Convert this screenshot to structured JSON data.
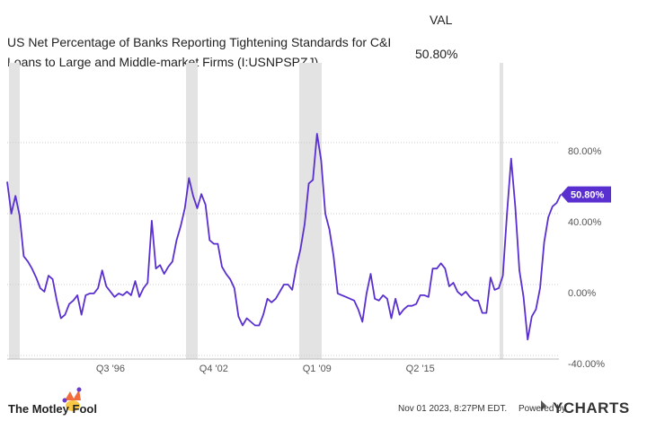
{
  "header": {
    "title": "US Net Percentage of Banks Reporting Tightening Standards for C&I Loans to Large and Middle-market Firms (I:USNPSPZJ)",
    "value_heading": "VAL",
    "current_value": "50.80%"
  },
  "footer": {
    "brand": "The Motley Fool",
    "timestamp": "Nov 01 2023, 8:27PM EDT.",
    "powered_by": "Powered by",
    "provider": "YCHARTS"
  },
  "chart_data": {
    "type": "line",
    "categories": [
      null,
      null,
      null,
      null,
      null,
      null,
      null,
      null,
      null,
      null,
      null,
      null,
      null,
      null,
      null,
      null,
      null,
      null,
      null,
      null,
      null,
      null,
      null,
      null,
      null,
      "Q3 '96",
      null,
      null,
      null,
      null,
      null,
      null,
      null,
      null,
      null,
      null,
      null,
      null,
      null,
      null,
      null,
      null,
      null,
      null,
      null,
      null,
      null,
      null,
      null,
      null,
      "Q4 '02",
      null,
      null,
      null,
      null,
      null,
      null,
      null,
      null,
      null,
      null,
      null,
      null,
      null,
      null,
      null,
      null,
      null,
      null,
      null,
      null,
      null,
      null,
      null,
      null,
      "Q1 '09",
      null,
      null,
      null,
      null,
      null,
      null,
      null,
      null,
      null,
      null,
      null,
      null,
      null,
      null,
      null,
      null,
      null,
      null,
      null,
      null,
      null,
      null,
      null,
      null,
      "Q2 '15",
      null,
      null,
      null,
      null,
      null,
      null,
      null,
      null,
      null,
      null,
      null,
      null,
      null,
      null,
      null,
      null,
      null,
      null,
      null,
      null,
      null,
      null,
      null,
      null,
      null,
      null,
      null,
      null,
      null,
      null,
      null,
      null,
      null,
      null
    ],
    "series": [
      {
        "name": "VAL",
        "color": "#5a2fd0",
        "values": [
          58,
          40,
          50,
          39,
          16,
          13,
          9,
          4,
          -2,
          -4,
          5,
          3,
          -9,
          -19,
          -17,
          -11,
          -9,
          -6,
          -17,
          -6,
          -5,
          -5,
          -2,
          8,
          -1,
          -4,
          -7,
          -5,
          -6,
          -4,
          -6,
          2,
          -7,
          -2,
          1,
          36,
          9,
          11,
          6,
          10,
          13,
          25,
          33,
          43,
          60,
          50,
          43,
          51,
          45,
          25,
          23,
          23,
          10,
          6,
          3,
          -2,
          -18,
          -23,
          -19,
          -21,
          -23,
          -23,
          -17,
          -8,
          -10,
          -8,
          -4,
          0,
          0,
          -3,
          10,
          20,
          34,
          57,
          59,
          85,
          70,
          40,
          31,
          16,
          -5,
          -6,
          -7,
          -8,
          -9,
          -14,
          -21,
          -5,
          6,
          -8,
          -9,
          -6,
          -8,
          -19,
          -8,
          -17,
          -14,
          -12,
          -12,
          -11,
          -6,
          -6,
          -7,
          9,
          9,
          12,
          9,
          -1,
          1,
          -4,
          -6,
          -4,
          -7,
          -9,
          -9,
          -16,
          -16,
          4,
          -3,
          -2,
          5,
          40,
          71,
          44,
          8,
          -7,
          -31,
          -18,
          -14,
          -2,
          24,
          38,
          44,
          46,
          50.8
        ]
      }
    ],
    "ylim": [
      -42,
      125
    ],
    "yticks": [
      {
        "value": -40,
        "label": "-40.00%"
      },
      {
        "value": 0,
        "label": "0.00%"
      },
      {
        "value": 40,
        "label": "40.00%"
      },
      {
        "value": 80,
        "label": "80.00%"
      }
    ],
    "grid": true
  }
}
